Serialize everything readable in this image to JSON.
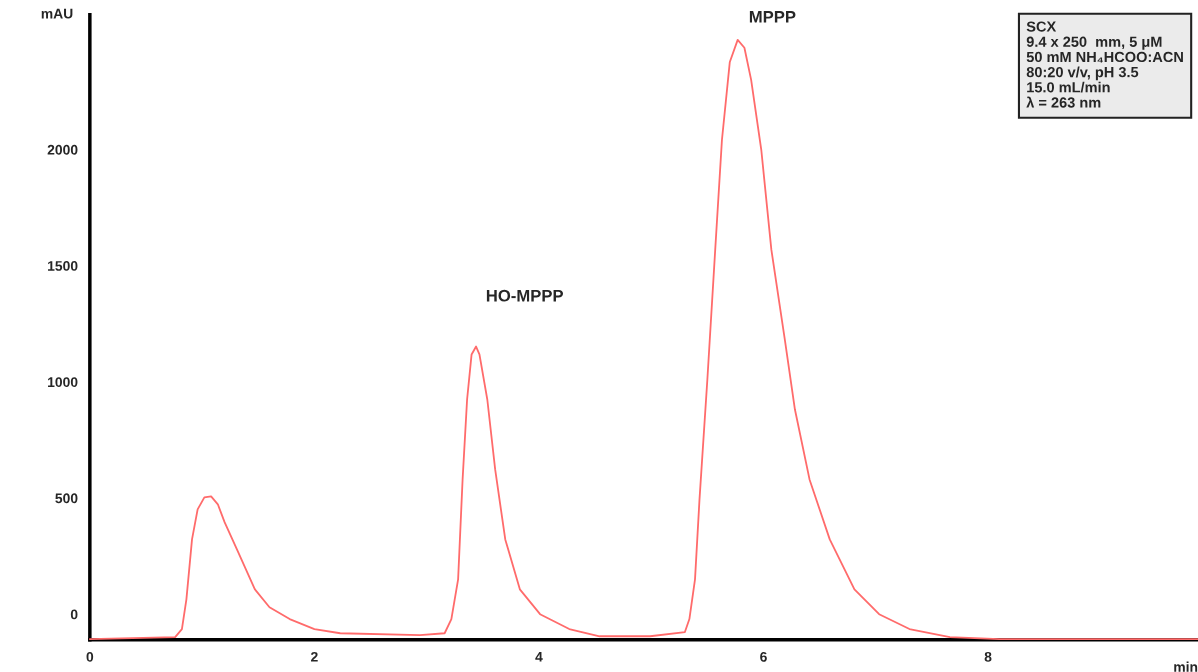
{
  "chart_data": {
    "type": "line",
    "xlabel": "min",
    "ylabel": "mAU",
    "x": [
      0,
      0.76,
      0.82,
      0.86,
      0.91,
      0.96,
      1.02,
      1.08,
      1.14,
      1.2,
      1.31,
      1.47,
      1.6,
      1.78,
      2.0,
      2.23,
      2.94,
      3.16,
      3.22,
      3.28,
      3.32,
      3.36,
      3.4,
      3.44,
      3.47,
      3.54,
      3.61,
      3.7,
      3.83,
      4.01,
      4.27,
      4.54,
      4.99,
      5.3,
      5.34,
      5.39,
      5.43,
      5.5,
      5.57,
      5.63,
      5.7,
      5.77,
      5.83,
      5.89,
      5.98,
      6.07,
      6.19,
      6.28,
      6.41,
      6.59,
      6.81,
      7.03,
      7.3,
      7.66,
      8.1,
      9.87
    ],
    "series": [
      {
        "color": "#ff6b6b",
        "values": [
          -107,
          -99,
          -64,
          64,
          322,
          451,
          503,
          507,
          473,
          396,
          279,
          107,
          30,
          -21,
          -64,
          -82,
          -90,
          -82,
          -21,
          150,
          580,
          924,
          1118,
          1152,
          1118,
          924,
          623,
          322,
          107,
          0,
          -64,
          -95,
          -95,
          -77,
          -21,
          150,
          494,
          1010,
          1569,
          2042,
          2377,
          2472,
          2438,
          2300,
          2000,
          1569,
          1182,
          881,
          580,
          322,
          107,
          0,
          -64,
          -99,
          -107,
          -107
        ]
      }
    ],
    "xlim": [
      0,
      9.87
    ],
    "xticks": [
      0,
      2,
      4,
      6,
      8
    ],
    "ylim": [
      -110,
      2580
    ],
    "yticks": [
      0,
      500,
      1000,
      1500,
      2000
    ],
    "grid": false,
    "legend": false,
    "marker": "none",
    "line_style": "solid",
    "annotations": [
      {
        "text": "HO-MPPP",
        "x": 3.44,
        "y": 1152
      },
      {
        "text": "MPPP",
        "x": 5.77,
        "y": 2472
      },
      "SCX\n9.4 x 250  mm, 5 μM\n50 mM NH₄HCOO:ACN\n80:20 v/v, pH 3.5\n15.0 mL/min\nλ = 263 nm"
    ]
  }
}
